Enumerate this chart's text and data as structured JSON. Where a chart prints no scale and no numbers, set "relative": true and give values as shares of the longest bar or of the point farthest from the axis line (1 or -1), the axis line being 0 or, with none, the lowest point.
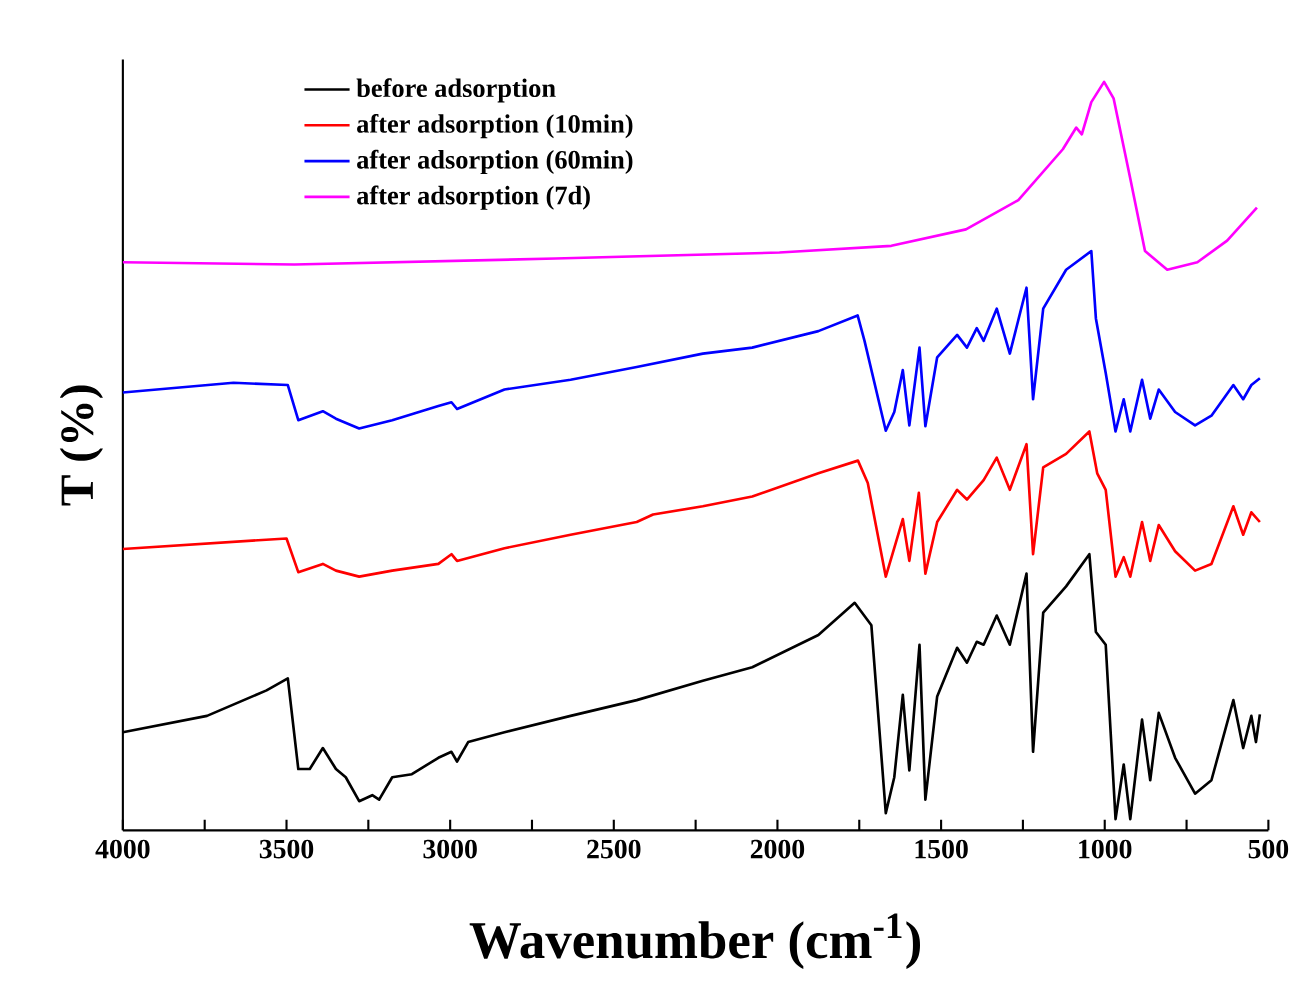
{
  "chart_data": {
    "type": "line",
    "relative": true,
    "xlabel": "Wavenumber (cm$^{-1}$)",
    "ylabel": "T (%)",
    "xlim": [
      4000,
      500
    ],
    "xticks": [
      4000,
      3500,
      3000,
      2500,
      2000,
      1500,
      1000,
      500
    ],
    "legend": "top left",
    "grid": false,
    "marker": "none",
    "line_style": "solid",
    "series": [
      {
        "name": "before adsorption",
        "color": "#000000",
        "x": [
          4000,
          3743,
          3561,
          3496,
          3464,
          3429,
          3389,
          3349,
          3319,
          3278,
          3238,
          3217,
          3177,
          3117,
          3036,
          2996,
          2979,
          2945,
          2834,
          2632,
          2430,
          2228,
          2077,
          1875,
          1764,
          1713,
          1669,
          1643,
          1617,
          1597,
          1566,
          1548,
          1512,
          1451,
          1421,
          1391,
          1370,
          1330,
          1290,
          1239,
          1219,
          1188,
          1118,
          1047,
          1027,
          997,
          967,
          942,
          922,
          886,
          861,
          835,
          785,
          724,
          674,
          607,
          577,
          552,
          538,
          526
        ],
        "values": [
          0.131,
          0.153,
          0.187,
          0.203,
          0.082,
          0.082,
          0.11,
          0.082,
          0.071,
          0.039,
          0.047,
          0.041,
          0.071,
          0.075,
          0.097,
          0.105,
          0.092,
          0.118,
          0.131,
          0.153,
          0.174,
          0.2,
          0.218,
          0.261,
          0.304,
          0.274,
          0.023,
          0.071,
          0.181,
          0.08,
          0.248,
          0.041,
          0.179,
          0.244,
          0.224,
          0.252,
          0.248,
          0.287,
          0.248,
          0.343,
          0.105,
          0.291,
          0.326,
          0.369,
          0.265,
          0.248,
          0.015,
          0.088,
          0.015,
          0.148,
          0.067,
          0.157,
          0.097,
          0.049,
          0.067,
          0.174,
          0.11,
          0.153,
          0.118,
          0.155
        ]
      },
      {
        "name": "after adsorption (10min)",
        "color": "#ff0000",
        "x": [
          4000,
          3500,
          3464,
          3389,
          3349,
          3278,
          3177,
          3036,
          2996,
          2979,
          2834,
          2632,
          2430,
          2380,
          2228,
          2077,
          1875,
          1754,
          1724,
          1669,
          1617,
          1597,
          1568,
          1548,
          1512,
          1451,
          1421,
          1370,
          1330,
          1290,
          1239,
          1219,
          1188,
          1118,
          1047,
          1023,
          997,
          967,
          942,
          922,
          886,
          861,
          835,
          785,
          724,
          674,
          607,
          577,
          552,
          526
        ],
        "values": [
          0.376,
          0.39,
          0.345,
          0.356,
          0.347,
          0.339,
          0.347,
          0.356,
          0.369,
          0.36,
          0.377,
          0.395,
          0.412,
          0.422,
          0.433,
          0.446,
          0.477,
          0.494,
          0.464,
          0.339,
          0.416,
          0.36,
          0.451,
          0.343,
          0.412,
          0.455,
          0.442,
          0.468,
          0.498,
          0.455,
          0.516,
          0.369,
          0.485,
          0.503,
          0.533,
          0.477,
          0.455,
          0.339,
          0.365,
          0.339,
          0.412,
          0.36,
          0.408,
          0.373,
          0.347,
          0.356,
          0.433,
          0.395,
          0.425,
          0.412
        ]
      },
      {
        "name": "after adsorption (60min)",
        "color": "#0000ff",
        "x": [
          4000,
          3662,
          3496,
          3464,
          3389,
          3349,
          3278,
          3177,
          3036,
          2996,
          2979,
          2834,
          2632,
          2430,
          2228,
          2077,
          1875,
          1755,
          1734,
          1669,
          1643,
          1617,
          1597,
          1566,
          1548,
          1512,
          1451,
          1421,
          1391,
          1370,
          1330,
          1290,
          1239,
          1219,
          1188,
          1118,
          1041,
          1027,
          997,
          967,
          942,
          922,
          886,
          861,
          835,
          785,
          724,
          674,
          607,
          577,
          552,
          526
        ],
        "values": [
          0.585,
          0.598,
          0.595,
          0.548,
          0.56,
          0.55,
          0.537,
          0.548,
          0.567,
          0.572,
          0.563,
          0.589,
          0.602,
          0.619,
          0.637,
          0.645,
          0.667,
          0.688,
          0.654,
          0.534,
          0.559,
          0.615,
          0.541,
          0.645,
          0.54,
          0.632,
          0.662,
          0.645,
          0.671,
          0.654,
          0.697,
          0.637,
          0.725,
          0.576,
          0.697,
          0.749,
          0.774,
          0.684,
          0.611,
          0.533,
          0.576,
          0.533,
          0.602,
          0.55,
          0.589,
          0.559,
          0.541,
          0.554,
          0.595,
          0.576,
          0.595,
          0.604
        ]
      },
      {
        "name": "after adsorption (7d)",
        "color": "#ff00ff",
        "x": [
          4000,
          3476,
          2678,
          1994,
          1652,
          1424,
          1264,
          1128,
          1087,
          1070,
          1041,
          1002,
          973,
          922,
          877,
          809,
          717,
          626,
          535
        ],
        "values": [
          0.759,
          0.756,
          0.764,
          0.772,
          0.781,
          0.803,
          0.842,
          0.91,
          0.939,
          0.93,
          0.973,
          1.0,
          0.978,
          0.871,
          0.774,
          0.749,
          0.759,
          0.788,
          0.832
        ]
      }
    ]
  }
}
